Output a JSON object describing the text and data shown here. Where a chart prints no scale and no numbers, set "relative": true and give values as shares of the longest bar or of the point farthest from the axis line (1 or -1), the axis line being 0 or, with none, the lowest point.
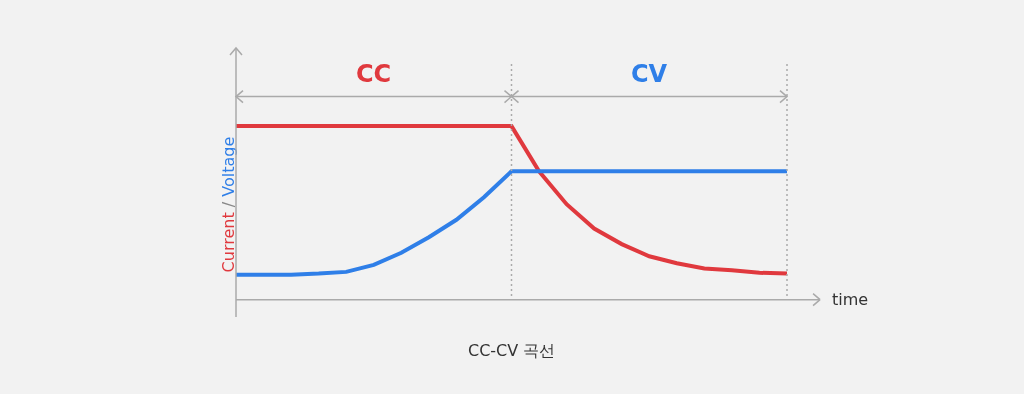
{
  "chart_data": {
    "type": "line",
    "relative": true,
    "xlabel": "time",
    "ylabel": "Current / Voltage",
    "categories": [
      null,
      null,
      null,
      null,
      null,
      null,
      null,
      null,
      null,
      null,
      null,
      null,
      null,
      null,
      null,
      null,
      null,
      null,
      null,
      null,
      null
    ],
    "series": [
      {
        "color": "#e0393e",
        "values": [
          1,
          1,
          1,
          1,
          1,
          1,
          1,
          1,
          1,
          1,
          1,
          0.74,
          0.55,
          0.41,
          0.32,
          0.25,
          0.21,
          0.18,
          0.17,
          0.155,
          0.15
        ]
      },
      {
        "color": "#2f7fe8",
        "values": [
          0.144,
          0.144,
          0.144,
          0.15,
          0.16,
          0.2,
          0.27,
          0.36,
          0.46,
          0.59,
          0.74,
          0.74,
          0.74,
          0.74,
          0.74,
          0.74,
          0.74,
          0.74,
          0.74,
          0.74,
          0.74
        ]
      }
    ],
    "annotations": [
      "CC",
      "CV",
      "CC-CV 곡선"
    ],
    "marker": "none",
    "line_style": "solid"
  }
}
